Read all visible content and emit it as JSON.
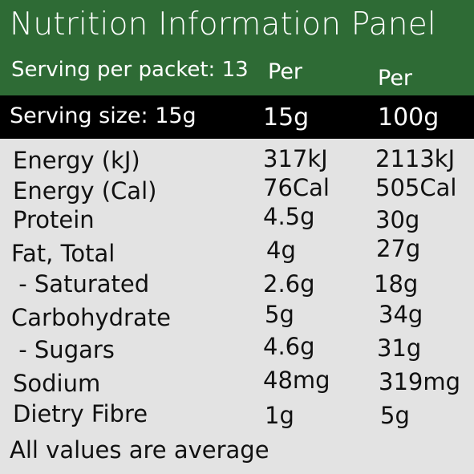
{
  "panel": {
    "title": "Nutrition Information Panel",
    "serving_per_packet": "Serving per packet: 13",
    "per_1": "Per",
    "per_2": "Per",
    "serving_size_label": "Serving size: 15g",
    "serving_col1": "15g",
    "serving_col2": "100g"
  },
  "rows": [
    {
      "label": "Energy (kJ)",
      "per_serving": "317kJ",
      "per_100g": "2113kJ"
    },
    {
      "label": "Energy (Cal)",
      "per_serving": "76Cal",
      "per_100g": "505Cal"
    },
    {
      "label": "Protein",
      "per_serving": "4.5g",
      "per_100g": "30g"
    },
    {
      "label": "Fat, Total",
      "per_serving": "4g",
      "per_100g": "27g"
    },
    {
      "label": " - Saturated",
      "per_serving": "2.6g",
      "per_100g": "18g"
    },
    {
      "label": "Carbohydrate",
      "per_serving": "5g",
      "per_100g": "34g"
    },
    {
      "label": " - Sugars",
      "per_serving": "4.6g",
      "per_100g": "31g"
    },
    {
      "label": "Sodium",
      "per_serving": "48mg",
      "per_100g": "319mg"
    },
    {
      "label": "Dietry Fibre",
      "per_serving": "1g",
      "per_100g": "5g"
    }
  ],
  "footer": "All values are average",
  "colors": {
    "header_green": "#2e6b35",
    "serving_bar": "#000000",
    "body_bg": "#e3e3e3"
  }
}
